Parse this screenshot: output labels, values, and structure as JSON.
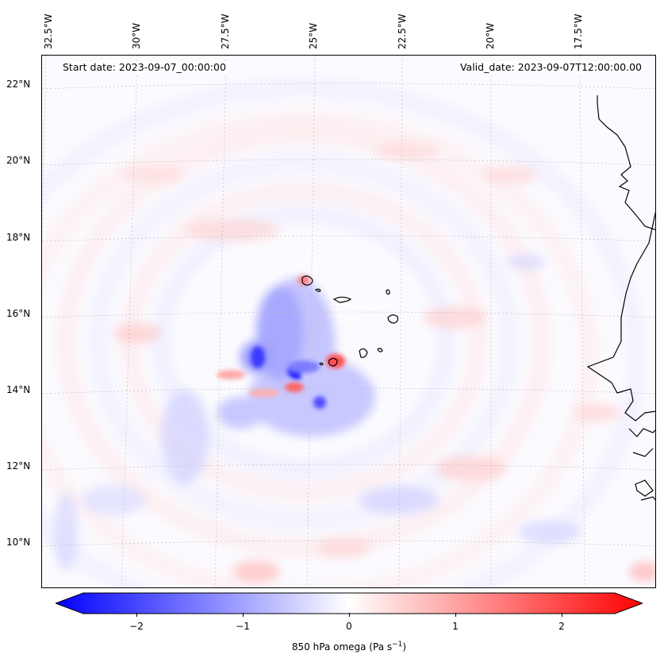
{
  "header": {
    "start_date": "Start date: 2023-09-07_00:00:00",
    "valid_date": "Valid_date: 2023-09-07T12:00:00.00"
  },
  "axes": {
    "longitude_labels": [
      "32.5°W",
      "30°W",
      "27.5°W",
      "25°W",
      "22.5°W",
      "20°W",
      "17.5°W"
    ],
    "latitude_labels": [
      "22°N",
      "20°N",
      "18°N",
      "16°N",
      "14°N",
      "12°N",
      "10°N"
    ]
  },
  "colorbar": {
    "label": "850 hPa omega (Pa s",
    "label_superscript": "−1",
    "label_close": ")",
    "ticks": [
      "−2",
      "−1",
      "0",
      "1",
      "2"
    ],
    "range": [
      -2.6,
      2.6
    ],
    "colors": {
      "negative": "#0000ff",
      "zero": "#ffffff",
      "positive": "#ff0000"
    }
  },
  "map": {
    "variable": "850 hPa omega",
    "units": "Pa s-1",
    "extent_lon": [
      -32.7,
      -15.7
    ],
    "extent_lat": [
      8.9,
      22.8
    ],
    "coastline_color": "#000000"
  }
}
